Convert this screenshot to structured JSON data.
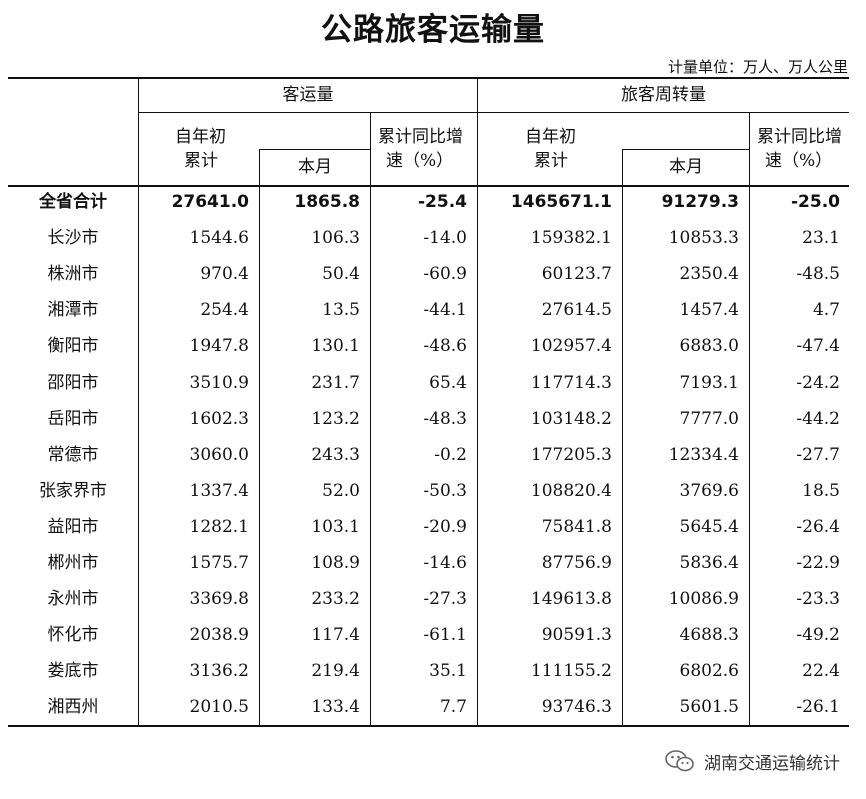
{
  "title": "公路旅客运输量",
  "unit_note": "计量单位：万人、万人公里",
  "headers": {
    "group_passenger": "客运量",
    "group_turnover": "旅客周转量",
    "ytd": [
      "自年初",
      "累计"
    ],
    "month": "本月",
    "yoy": [
      "累计同比增",
      "速（%）"
    ]
  },
  "rows": [
    {
      "region": "全省合计",
      "p_ytd": "27641.0",
      "p_month": "1865.8",
      "p_yoy": "-25.4",
      "t_ytd": "1465671.1",
      "t_month": "91279.3",
      "t_yoy": "-25.0",
      "bold": true
    },
    {
      "region": "长沙市",
      "p_ytd": "1544.6",
      "p_month": "106.3",
      "p_yoy": "-14.0",
      "t_ytd": "159382.1",
      "t_month": "10853.3",
      "t_yoy": "23.1"
    },
    {
      "region": "株洲市",
      "p_ytd": "970.4",
      "p_month": "50.4",
      "p_yoy": "-60.9",
      "t_ytd": "60123.7",
      "t_month": "2350.4",
      "t_yoy": "-48.5"
    },
    {
      "region": "湘潭市",
      "p_ytd": "254.4",
      "p_month": "13.5",
      "p_yoy": "-44.1",
      "t_ytd": "27614.5",
      "t_month": "1457.4",
      "t_yoy": "4.7"
    },
    {
      "region": "衡阳市",
      "p_ytd": "1947.8",
      "p_month": "130.1",
      "p_yoy": "-48.6",
      "t_ytd": "102957.4",
      "t_month": "6883.0",
      "t_yoy": "-47.4"
    },
    {
      "region": "邵阳市",
      "p_ytd": "3510.9",
      "p_month": "231.7",
      "p_yoy": "65.4",
      "t_ytd": "117714.3",
      "t_month": "7193.1",
      "t_yoy": "-24.2"
    },
    {
      "region": "岳阳市",
      "p_ytd": "1602.3",
      "p_month": "123.2",
      "p_yoy": "-48.3",
      "t_ytd": "103148.2",
      "t_month": "7777.0",
      "t_yoy": "-44.2"
    },
    {
      "region": "常德市",
      "p_ytd": "3060.0",
      "p_month": "243.3",
      "p_yoy": "-0.2",
      "t_ytd": "177205.3",
      "t_month": "12334.4",
      "t_yoy": "-27.7"
    },
    {
      "region": "张家界市",
      "p_ytd": "1337.4",
      "p_month": "52.0",
      "p_yoy": "-50.3",
      "t_ytd": "108820.4",
      "t_month": "3769.6",
      "t_yoy": "18.5"
    },
    {
      "region": "益阳市",
      "p_ytd": "1282.1",
      "p_month": "103.1",
      "p_yoy": "-20.9",
      "t_ytd": "75841.8",
      "t_month": "5645.4",
      "t_yoy": "-26.4"
    },
    {
      "region": "郴州市",
      "p_ytd": "1575.7",
      "p_month": "108.9",
      "p_yoy": "-14.6",
      "t_ytd": "87756.9",
      "t_month": "5836.4",
      "t_yoy": "-22.9"
    },
    {
      "region": "永州市",
      "p_ytd": "3369.8",
      "p_month": "233.2",
      "p_yoy": "-27.3",
      "t_ytd": "149613.8",
      "t_month": "10086.9",
      "t_yoy": "-23.3"
    },
    {
      "region": "怀化市",
      "p_ytd": "2038.9",
      "p_month": "117.4",
      "p_yoy": "-61.1",
      "t_ytd": "90591.3",
      "t_month": "4688.3",
      "t_yoy": "-49.2"
    },
    {
      "region": "娄底市",
      "p_ytd": "3136.2",
      "p_month": "219.4",
      "p_yoy": "35.1",
      "t_ytd": "111155.2",
      "t_month": "6802.6",
      "t_yoy": "22.4"
    },
    {
      "region": "湘西州",
      "p_ytd": "2010.5",
      "p_month": "133.4",
      "p_yoy": "7.7",
      "t_ytd": "93746.3",
      "t_month": "5601.5",
      "t_yoy": "-26.1"
    }
  ],
  "footer": {
    "icon": "wechat-icon",
    "account": "湖南交通运输统计"
  }
}
